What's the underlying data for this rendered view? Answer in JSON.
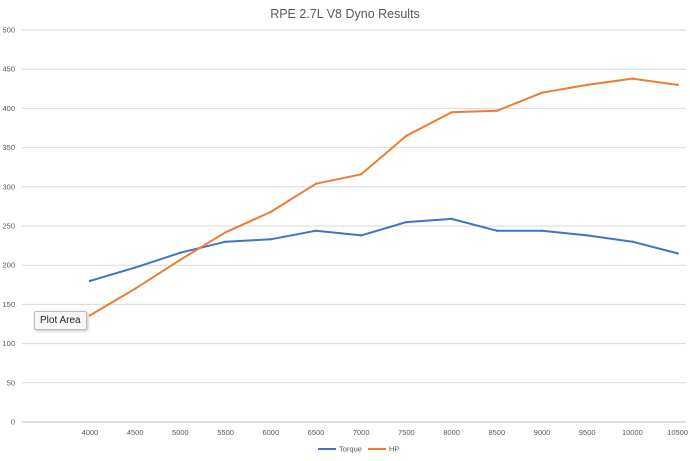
{
  "tooltip": {
    "text": "Plot Area"
  },
  "chart_data": {
    "type": "line",
    "title": "RPE 2.7L V8 Dyno Results",
    "xlabel": "",
    "ylabel": "",
    "categories": [
      "4000",
      "4500",
      "5000",
      "5500",
      "6000",
      "6500",
      "7000",
      "7500",
      "8000",
      "8500",
      "9000",
      "9500",
      "10000",
      "10500"
    ],
    "series": [
      {
        "name": "Torque",
        "color": "#4472c4",
        "values": [
          180,
          197,
          216,
          230,
          233,
          244,
          238,
          255,
          259,
          244,
          244,
          238,
          230,
          215
        ]
      },
      {
        "name": "HP",
        "color": "#ed7d31",
        "values": [
          136,
          170,
          207,
          242,
          268,
          304,
          316,
          365,
          395,
          397,
          420,
          430,
          438,
          430
        ]
      }
    ],
    "ylim": [
      0,
      500
    ],
    "yticks": [
      "0",
      "50",
      "100",
      "150",
      "200",
      "250",
      "300",
      "350",
      "400",
      "450",
      "500"
    ],
    "grid": true,
    "legend_position": "bottom"
  }
}
